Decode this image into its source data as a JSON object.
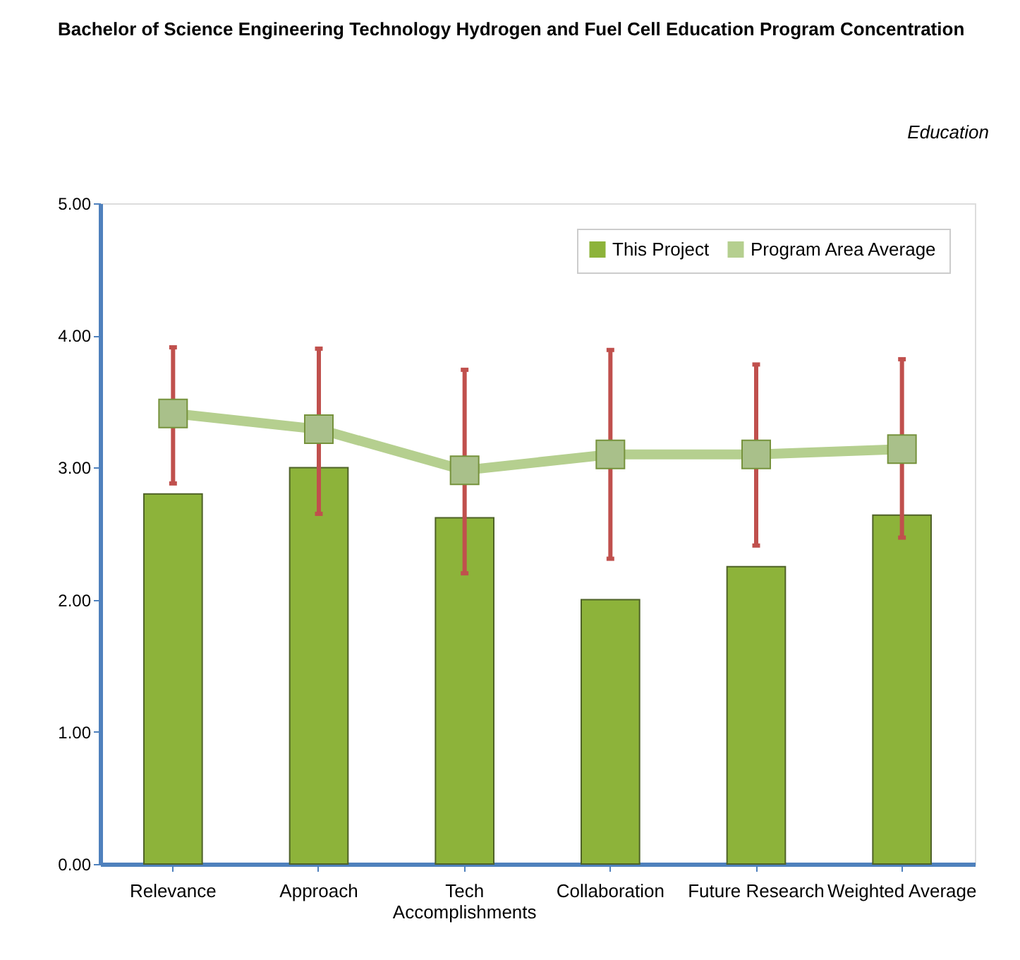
{
  "chart_data": {
    "type": "bar",
    "title": "Bachelor of Science Engineering Technology Hydrogen and Fuel Cell Education Program Concentration",
    "subtitle": "Education",
    "categories": [
      "Relevance",
      "Approach",
      "Tech\nAccomplishments",
      "Collaboration",
      "Future Research",
      "Weighted Average"
    ],
    "series": [
      {
        "name": "This Project",
        "color": "#8db33a",
        "values": [
          2.8,
          3.0,
          2.62,
          2.0,
          2.25,
          2.64
        ]
      },
      {
        "name": "Program Area Average",
        "type": "line",
        "color": "#b5cf8f",
        "marker": "square",
        "values": [
          3.41,
          3.29,
          2.98,
          3.1,
          3.1,
          3.14
        ],
        "errors": [
          [
            2.88,
            3.91
          ],
          [
            2.65,
            3.9
          ],
          [
            2.2,
            3.74
          ],
          [
            2.31,
            3.89
          ],
          [
            2.41,
            3.78
          ],
          [
            2.47,
            3.82
          ]
        ]
      }
    ],
    "ylim": [
      0,
      5
    ],
    "yticks": [
      {
        "value": 0,
        "label": "0.00"
      },
      {
        "value": 1,
        "label": "1.00"
      },
      {
        "value": 2,
        "label": "2.00"
      },
      {
        "value": 3,
        "label": "3.00"
      },
      {
        "value": 4,
        "label": "4.00"
      },
      {
        "value": 5,
        "label": "5.00"
      }
    ],
    "grid": false,
    "legend": "top right"
  }
}
